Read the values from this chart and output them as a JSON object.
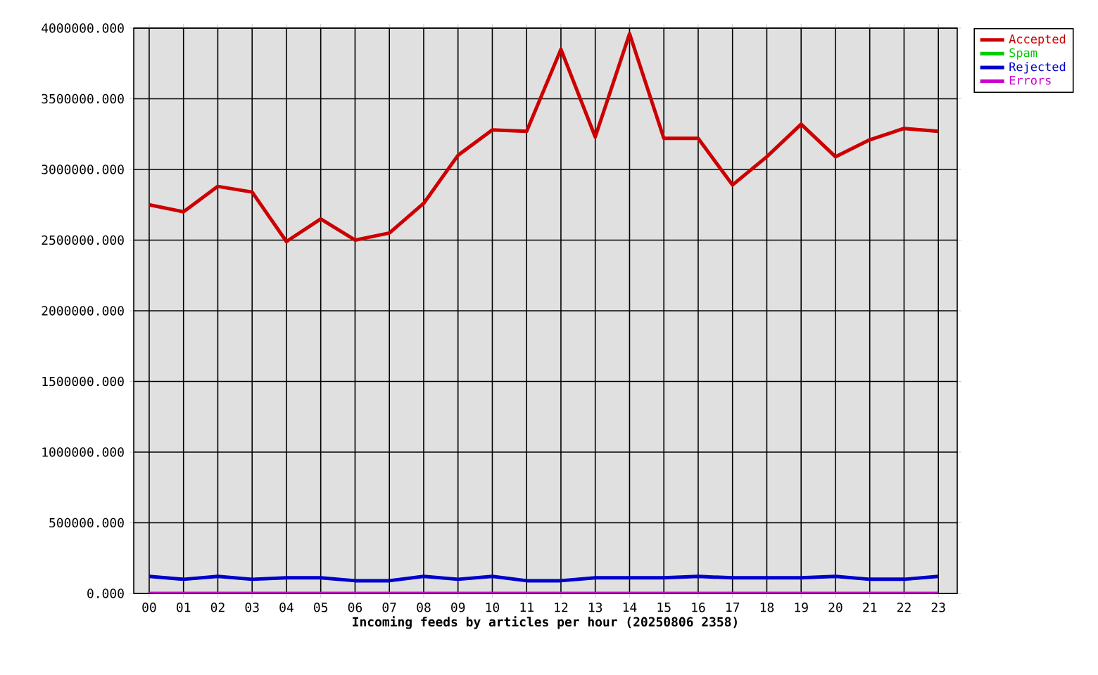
{
  "chart_data": {
    "type": "line",
    "xlabel": "Incoming feeds by articles per hour (20250806 2358)",
    "categories": [
      "00",
      "01",
      "02",
      "03",
      "04",
      "05",
      "06",
      "07",
      "08",
      "09",
      "10",
      "11",
      "12",
      "13",
      "14",
      "15",
      "16",
      "17",
      "18",
      "19",
      "20",
      "21",
      "22",
      "23"
    ],
    "series": [
      {
        "name": "Accepted",
        "color": "#cc0000",
        "values": [
          2750000,
          2700000,
          2880000,
          2840000,
          2490000,
          2650000,
          2500000,
          2550000,
          2760000,
          3100000,
          3280000,
          3270000,
          3850000,
          3230000,
          3960000,
          3220000,
          3220000,
          2890000,
          3090000,
          3320000,
          3090000,
          3210000,
          3290000,
          3270000
        ]
      },
      {
        "name": "Spam",
        "color": "#00cc00",
        "values": [
          null,
          null,
          null,
          null,
          null,
          null,
          null,
          null,
          null,
          null,
          null,
          null,
          null,
          null,
          null,
          null,
          null,
          null,
          null,
          null,
          null,
          null,
          null,
          null
        ]
      },
      {
        "name": "Rejected",
        "color": "#0000cc",
        "values": [
          120000,
          100000,
          120000,
          100000,
          110000,
          110000,
          90000,
          90000,
          120000,
          100000,
          120000,
          90000,
          90000,
          110000,
          110000,
          110000,
          120000,
          110000,
          110000,
          110000,
          120000,
          100000,
          100000,
          120000
        ]
      },
      {
        "name": "Errors",
        "color": "#cc00cc",
        "values": [
          0,
          0,
          0,
          0,
          0,
          0,
          0,
          0,
          0,
          0,
          0,
          0,
          0,
          0,
          0,
          0,
          0,
          0,
          0,
          0,
          0,
          0,
          0,
          0
        ]
      }
    ],
    "ylim": [
      0,
      4000000
    ],
    "yticks": [
      {
        "value": 0,
        "label": "0.000"
      },
      {
        "value": 500000,
        "label": "500000.000"
      },
      {
        "value": 1000000,
        "label": "1000000.000"
      },
      {
        "value": 1500000,
        "label": "1500000.000"
      },
      {
        "value": 2000000,
        "label": "2000000.000"
      },
      {
        "value": 2500000,
        "label": "2500000.000"
      },
      {
        "value": 3000000,
        "label": "3000000.000"
      },
      {
        "value": 3500000,
        "label": "3500000.000"
      },
      {
        "value": 4000000,
        "label": "4000000.000"
      }
    ],
    "grid": true,
    "legend": "top right"
  }
}
